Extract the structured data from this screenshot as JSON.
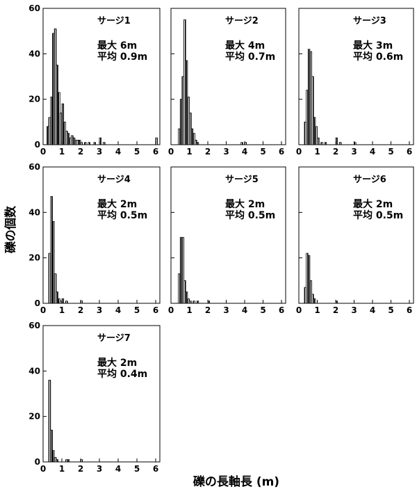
{
  "figure": {
    "ylabel": "礫の個数",
    "xlabel": "礫の長軸長 (m)"
  },
  "chart_data": [
    {
      "type": "bar",
      "title": "サージ1",
      "annot_max": "最大 6m",
      "annot_avg": "平均 0.9m",
      "xlim": [
        0,
        6
      ],
      "ylim": [
        0,
        60
      ],
      "xticks": [
        0,
        1,
        2,
        3,
        4,
        5,
        6
      ],
      "yticks": [
        0,
        20,
        40,
        60
      ],
      "bin_width": 0.1,
      "bins": [
        [
          0.2,
          8
        ],
        [
          0.3,
          12
        ],
        [
          0.4,
          21
        ],
        [
          0.5,
          49
        ],
        [
          0.6,
          51
        ],
        [
          0.7,
          35
        ],
        [
          0.8,
          23
        ],
        [
          0.9,
          14
        ],
        [
          1.0,
          18
        ],
        [
          1.1,
          10
        ],
        [
          1.2,
          6
        ],
        [
          1.3,
          5
        ],
        [
          1.4,
          3
        ],
        [
          1.5,
          4
        ],
        [
          1.6,
          3
        ],
        [
          1.7,
          2
        ],
        [
          1.8,
          2
        ],
        [
          1.9,
          2
        ],
        [
          2.0,
          1
        ],
        [
          2.2,
          1
        ],
        [
          2.4,
          1
        ],
        [
          2.7,
          1
        ],
        [
          3.0,
          3
        ],
        [
          3.2,
          1
        ],
        [
          6.0,
          3
        ]
      ]
    },
    {
      "type": "bar",
      "title": "サージ2",
      "annot_max": "最大 4m",
      "annot_avg": "平均 0.7m",
      "xlim": [
        0,
        6
      ],
      "ylim": [
        0,
        60
      ],
      "xticks": [
        0,
        1,
        2,
        3,
        4,
        5,
        6
      ],
      "yticks": [
        0,
        20,
        40,
        60
      ],
      "bin_width": 0.1,
      "bins": [
        [
          0.4,
          7
        ],
        [
          0.5,
          20
        ],
        [
          0.6,
          30
        ],
        [
          0.7,
          55
        ],
        [
          0.8,
          37
        ],
        [
          0.9,
          21
        ],
        [
          1.0,
          14
        ],
        [
          1.1,
          7
        ],
        [
          1.2,
          5
        ],
        [
          1.3,
          2
        ],
        [
          1.4,
          1
        ],
        [
          3.8,
          1
        ],
        [
          4.0,
          1
        ]
      ]
    },
    {
      "type": "bar",
      "title": "サージ3",
      "annot_max": "最大 3m",
      "annot_avg": "平均 0.6m",
      "xlim": [
        0,
        6
      ],
      "ylim": [
        0,
        60
      ],
      "xticks": [
        0,
        1,
        2,
        3,
        4,
        5,
        6
      ],
      "yticks": [
        0,
        20,
        40,
        60
      ],
      "bin_width": 0.1,
      "bins": [
        [
          0.3,
          10
        ],
        [
          0.4,
          24
        ],
        [
          0.5,
          42
        ],
        [
          0.6,
          41
        ],
        [
          0.7,
          30
        ],
        [
          0.8,
          12
        ],
        [
          0.9,
          8
        ],
        [
          1.0,
          3
        ],
        [
          1.2,
          1
        ],
        [
          1.4,
          1
        ],
        [
          2.0,
          3
        ],
        [
          2.2,
          1
        ],
        [
          3.0,
          1
        ]
      ]
    },
    {
      "type": "bar",
      "title": "サージ4",
      "annot_max": "最大 2m",
      "annot_avg": "平均 0.5m",
      "xlim": [
        0,
        6
      ],
      "ylim": [
        0,
        60
      ],
      "xticks": [
        0,
        1,
        2,
        3,
        4,
        5,
        6
      ],
      "yticks": [
        0,
        20,
        40,
        60
      ],
      "bin_width": 0.1,
      "bins": [
        [
          0.3,
          22
        ],
        [
          0.4,
          47
        ],
        [
          0.5,
          36
        ],
        [
          0.6,
          13
        ],
        [
          0.7,
          5
        ],
        [
          0.8,
          2
        ],
        [
          0.9,
          1
        ],
        [
          1.0,
          2
        ],
        [
          1.2,
          1
        ],
        [
          2.0,
          1
        ]
      ]
    },
    {
      "type": "bar",
      "title": "サージ5",
      "annot_max": "最大 2m",
      "annot_avg": "平均 0.5m",
      "xlim": [
        0,
        6
      ],
      "ylim": [
        0,
        60
      ],
      "xticks": [
        0,
        1,
        2,
        3,
        4,
        5,
        6
      ],
      "yticks": [
        0,
        20,
        40,
        60
      ],
      "bin_width": 0.1,
      "bins": [
        [
          0.4,
          13
        ],
        [
          0.5,
          29
        ],
        [
          0.6,
          29
        ],
        [
          0.7,
          10
        ],
        [
          0.8,
          5
        ],
        [
          0.9,
          2
        ],
        [
          1.0,
          1
        ],
        [
          1.2,
          1
        ],
        [
          1.4,
          1
        ],
        [
          2.0,
          1
        ]
      ]
    },
    {
      "type": "bar",
      "title": "サージ6",
      "annot_max": "最大 2m",
      "annot_avg": "平均 0.5m",
      "xlim": [
        0,
        6
      ],
      "ylim": [
        0,
        60
      ],
      "xticks": [
        0,
        1,
        2,
        3,
        4,
        5,
        6
      ],
      "yticks": [
        0,
        20,
        40,
        60
      ],
      "bin_width": 0.1,
      "bins": [
        [
          0.3,
          7
        ],
        [
          0.4,
          22
        ],
        [
          0.5,
          21
        ],
        [
          0.6,
          10
        ],
        [
          0.7,
          4
        ],
        [
          0.8,
          2
        ],
        [
          2.0,
          1
        ]
      ]
    },
    {
      "type": "bar",
      "title": "サージ7",
      "annot_max": "最大 2m",
      "annot_avg": "平均 0.4m",
      "xlim": [
        0,
        6
      ],
      "ylim": [
        0,
        60
      ],
      "xticks": [
        0,
        1,
        2,
        3,
        4,
        5,
        6
      ],
      "yticks": [
        0,
        20,
        40,
        60
      ],
      "bin_width": 0.1,
      "bins": [
        [
          0.3,
          36
        ],
        [
          0.4,
          14
        ],
        [
          0.5,
          5
        ],
        [
          0.6,
          2
        ],
        [
          0.7,
          1
        ],
        [
          1.2,
          1
        ],
        [
          1.3,
          1
        ],
        [
          2.0,
          1
        ]
      ]
    }
  ]
}
